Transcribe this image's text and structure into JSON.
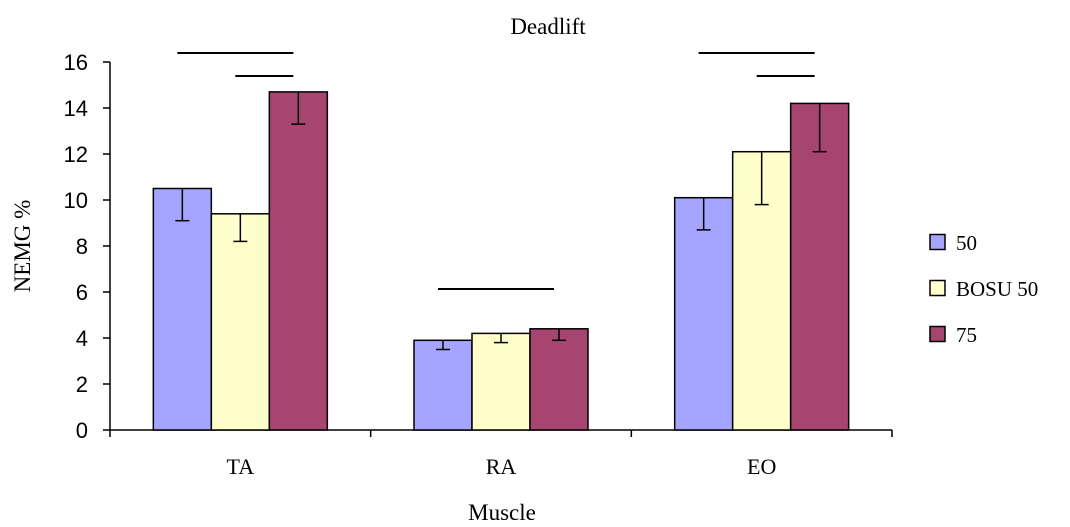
{
  "chart_data": {
    "type": "bar",
    "title": "Deadlift",
    "xlabel": "Muscle",
    "ylabel": "NEMG %",
    "categories": [
      "TA",
      "RA",
      "EO"
    ],
    "ylim": [
      0,
      16
    ],
    "yticks": [
      0,
      2,
      4,
      6,
      8,
      10,
      12,
      14,
      16
    ],
    "series": [
      {
        "name": "50",
        "color": "#A5A5FF",
        "values": [
          10.5,
          3.9,
          10.1
        ],
        "errors": [
          1.4,
          0.4,
          1.4
        ]
      },
      {
        "name": "BOSU 50",
        "color": "#FFFFCC",
        "values": [
          9.4,
          4.2,
          12.1
        ],
        "errors": [
          1.2,
          0.4,
          2.3
        ]
      },
      {
        "name": "75",
        "color": "#A64570",
        "values": [
          14.7,
          4.4,
          14.2
        ],
        "errors": [
          1.4,
          0.5,
          2.1
        ]
      }
    ],
    "significance": [
      {
        "category": "TA",
        "from_series": 0,
        "to_series": 2,
        "level": 0
      },
      {
        "category": "TA",
        "from_series": 1,
        "to_series": 2,
        "level": 1
      },
      {
        "category": "RA",
        "from_series": 0,
        "to_series": 2,
        "level": 0
      },
      {
        "category": "EO",
        "from_series": 0,
        "to_series": 2,
        "level": 0
      },
      {
        "category": "EO",
        "from_series": 1,
        "to_series": 2,
        "level": 1
      }
    ],
    "legend": "right",
    "grid": false
  }
}
